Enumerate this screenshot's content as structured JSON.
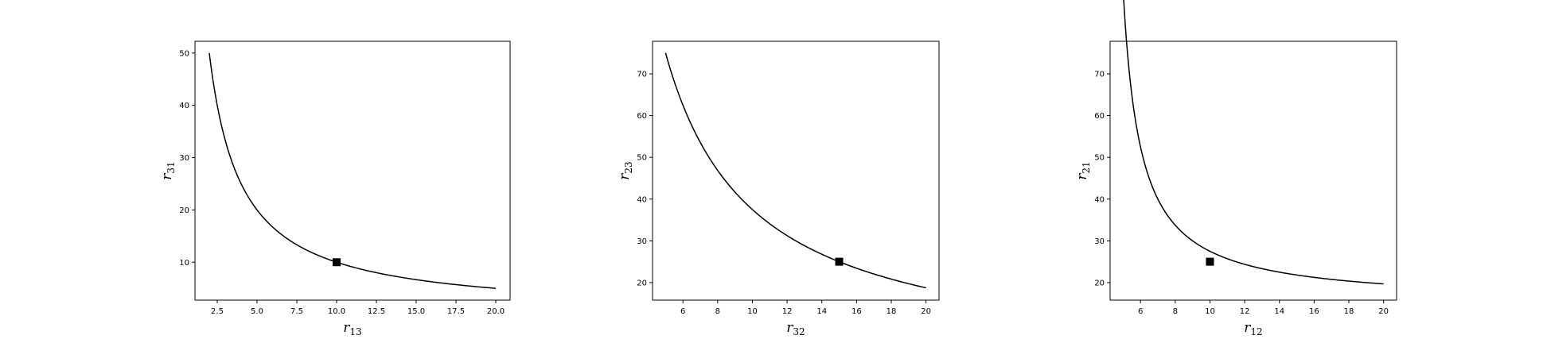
{
  "chart_data": [
    {
      "type": "line",
      "xlabel": {
        "base": "r",
        "sub": "13"
      },
      "ylabel": {
        "base": "r",
        "sub": "31"
      },
      "xlim": [
        1.1,
        20.9
      ],
      "ylim": [
        2.75,
        52.25
      ],
      "xticks": [
        "2.5",
        "5.0",
        "7.5",
        "10.0",
        "12.5",
        "15.0",
        "17.5",
        "20.0"
      ],
      "yticks": [
        "10",
        "20",
        "30",
        "40",
        "50"
      ],
      "curve": {
        "formula": "100/x",
        "x_start": 2,
        "x_end": 20
      },
      "marker": {
        "x": 10,
        "y": 10
      }
    },
    {
      "type": "line",
      "xlabel": {
        "base": "r",
        "sub": "32"
      },
      "ylabel": {
        "base": "r",
        "sub": "23"
      },
      "xlim": [
        4.25,
        20.75
      ],
      "ylim": [
        15.8,
        77.8
      ],
      "xticks": [
        "6",
        "8",
        "10",
        "12",
        "14",
        "16",
        "18",
        "20"
      ],
      "yticks": [
        "20",
        "30",
        "40",
        "50",
        "60",
        "70"
      ],
      "curve": {
        "formula": "375/x",
        "x_start": 5,
        "x_end": 20
      },
      "marker": {
        "x": 15,
        "y": 25
      }
    },
    {
      "type": "line",
      "xlabel": {
        "base": "r",
        "sub": "12"
      },
      "ylabel": {
        "base": "r",
        "sub": "21"
      },
      "xlim": [
        4.25,
        20.75
      ],
      "ylim": [
        15.8,
        77.8
      ],
      "xticks": [
        "6",
        "8",
        "10",
        "12",
        "14",
        "16",
        "18",
        "20"
      ],
      "yticks": [
        "20",
        "30",
        "40",
        "50",
        "60",
        "70"
      ],
      "curve": {
        "formula": "15 + 75/(x-4)",
        "x_start": 5,
        "x_end": 20
      },
      "marker": {
        "x": 10,
        "y": 25
      }
    }
  ]
}
